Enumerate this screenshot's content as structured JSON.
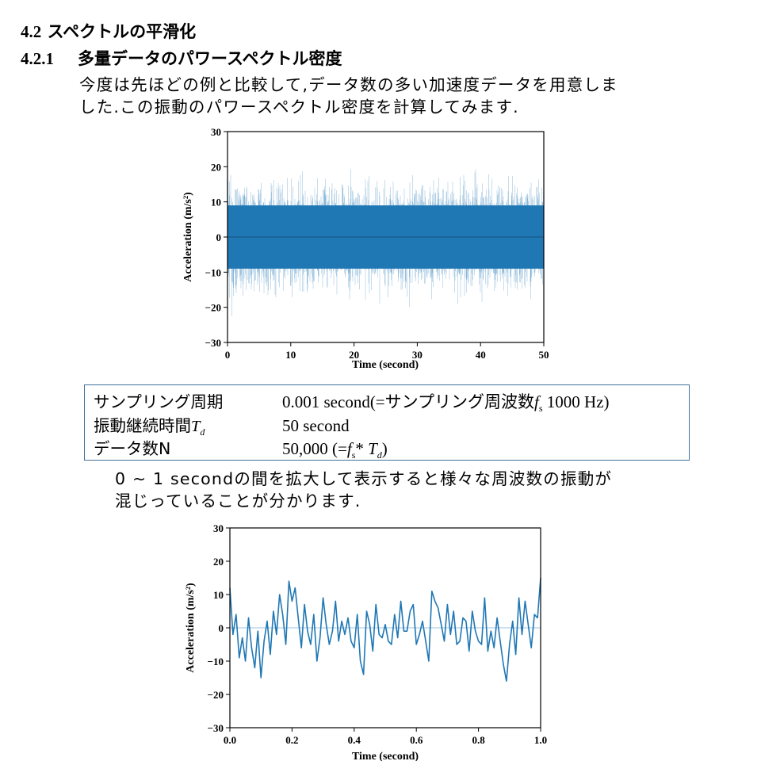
{
  "heading": {
    "section_number": "4.2",
    "section_title": "スペクトルの平滑化"
  },
  "subheading": {
    "number": "4.2.1",
    "title": "多量データのパワースペクトル密度"
  },
  "intro": {
    "line1": "今度は先ほどの例と比較して,データ数の多い加速度データを用意しま",
    "line2": "した.この振動のパワースペクトル密度を計算してみます."
  },
  "info_table": {
    "row1": {
      "label": "サンプリング周期",
      "value": "0.001 second(=サンプリング周波数",
      "fs_symbol": "f",
      "fs_sub": "s",
      "value_end": " 1000 Hz)"
    },
    "row2": {
      "label": "振動継続時間",
      "label_symbol": "T",
      "label_sub": "d",
      "value": "50 second"
    },
    "row3": {
      "label": "データ数N",
      "value": "50,000 (=",
      "fs_symbol": "f",
      "fs_sub": "s",
      "mult": "* ",
      "td_symbol": "T",
      "td_sub": "d",
      "value_end": ")"
    }
  },
  "middle_text": {
    "line1": "0 ~ 1 secondの間を拡大して表示すると様々な周波数の振動が",
    "line2": "混じっていることが分かります."
  },
  "chart_data": [
    {
      "type": "line",
      "xlabel": "Time (second)",
      "ylabel": "Acceleration (m/s²)",
      "xlim": [
        0,
        50
      ],
      "ylim": [
        -30,
        30
      ],
      "xticks": [
        "0",
        "10",
        "20",
        "30",
        "40",
        "50"
      ],
      "yticks": [
        "30",
        "20",
        "10",
        "0",
        "−10",
        "−20",
        "−30"
      ],
      "series_color": "#1f77b4",
      "envelope": {
        "typical_amplitude": 12,
        "max_amplitude": 24,
        "samples": 50000
      }
    },
    {
      "type": "line",
      "xlabel": "Time (second)",
      "ylabel": "Acceleration (m/s²)",
      "xlim": [
        0,
        1.0
      ],
      "ylim": [
        -30,
        30
      ],
      "xticks": [
        "0.0",
        "0.2",
        "0.4",
        "0.6",
        "0.8",
        "1.0"
      ],
      "yticks": [
        "30",
        "20",
        "10",
        "0",
        "−10",
        "−20",
        "−30"
      ],
      "series_color": "#1f77b4",
      "x": [
        0.0,
        0.01,
        0.02,
        0.03,
        0.04,
        0.05,
        0.06,
        0.07,
        0.08,
        0.09,
        0.1,
        0.11,
        0.12,
        0.13,
        0.14,
        0.15,
        0.16,
        0.17,
        0.18,
        0.19,
        0.2,
        0.21,
        0.22,
        0.23,
        0.24,
        0.25,
        0.26,
        0.27,
        0.28,
        0.29,
        0.3,
        0.31,
        0.32,
        0.33,
        0.34,
        0.35,
        0.36,
        0.37,
        0.38,
        0.39,
        0.4,
        0.41,
        0.42,
        0.43,
        0.44,
        0.45,
        0.46,
        0.47,
        0.48,
        0.49,
        0.5,
        0.51,
        0.52,
        0.53,
        0.54,
        0.55,
        0.56,
        0.57,
        0.58,
        0.59,
        0.6,
        0.61,
        0.62,
        0.63,
        0.64,
        0.65,
        0.66,
        0.67,
        0.68,
        0.69,
        0.7,
        0.71,
        0.72,
        0.73,
        0.74,
        0.75,
        0.76,
        0.77,
        0.78,
        0.79,
        0.8,
        0.81,
        0.82,
        0.83,
        0.84,
        0.85,
        0.86,
        0.87,
        0.88,
        0.89,
        0.9,
        0.91,
        0.92,
        0.93,
        0.94,
        0.95,
        0.96,
        0.97,
        0.98,
        0.99,
        1.0
      ],
      "y": [
        12,
        -2,
        4,
        -9,
        -3,
        -10,
        3,
        -6,
        -12,
        -1,
        -15,
        -4,
        2,
        -8,
        5,
        -2,
        10,
        4,
        -5,
        14,
        8,
        12,
        3,
        -6,
        7,
        -1,
        -5,
        4,
        -10,
        -3,
        9,
        1,
        -5,
        -1,
        8,
        -4,
        2,
        -2,
        3,
        -4,
        -6,
        4,
        -10,
        -14,
        5,
        1,
        -7,
        7,
        -2,
        -3,
        1,
        -4,
        -5,
        4,
        -3,
        8,
        -1,
        -1,
        5,
        7,
        -5,
        -2,
        2,
        -4,
        -10,
        11,
        8,
        6,
        1,
        -4,
        7,
        -2,
        5,
        -5,
        -4,
        3,
        2,
        -7,
        5,
        -1,
        -4,
        -5,
        9,
        -7,
        -1,
        -6,
        3,
        -4,
        -11,
        -16,
        -5,
        2,
        -8,
        9,
        -2,
        8,
        1,
        -6,
        4,
        3,
        15
      ]
    }
  ]
}
